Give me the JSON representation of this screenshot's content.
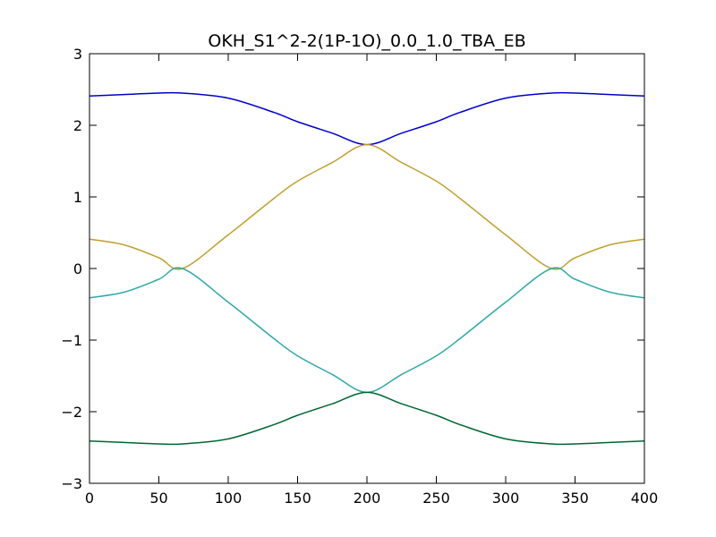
{
  "chart_data": {
    "type": "line",
    "title": "OKH_S1^2-2(1P-1O)_0.0_1.0_TBA_EB",
    "xlabel": "",
    "ylabel": "",
    "xlim": [
      0,
      400
    ],
    "ylim": [
      -3,
      3
    ],
    "xticks": [
      0,
      50,
      100,
      150,
      200,
      250,
      300,
      350,
      400
    ],
    "yticks": [
      -3,
      -2,
      -1,
      0,
      1,
      2,
      3
    ],
    "xtick_labels": [
      "0",
      "50",
      "100",
      "150",
      "200",
      "250",
      "300",
      "350",
      "400"
    ],
    "ytick_labels": [
      "−3",
      "−2",
      "−1",
      "0",
      "1",
      "2",
      "3"
    ],
    "grid": false,
    "legend": "none",
    "series": [
      {
        "color": "#0000cc",
        "x": [
          0,
          25,
          50,
          67,
          100,
          133,
          150,
          175,
          200,
          225,
          250,
          267,
          300,
          333,
          350,
          375,
          400
        ],
        "y": [
          2.41,
          2.43,
          2.45,
          2.45,
          2.38,
          2.18,
          2.05,
          1.89,
          1.73,
          1.89,
          2.05,
          2.18,
          2.38,
          2.45,
          2.45,
          2.43,
          2.41
        ]
      },
      {
        "color": "#c0a030",
        "x": [
          0,
          25,
          50,
          67,
          100,
          133,
          150,
          175,
          200,
          225,
          250,
          267,
          300,
          333,
          350,
          375,
          400
        ],
        "y": [
          0.41,
          0.33,
          0.15,
          0.0,
          0.47,
          0.98,
          1.22,
          1.48,
          1.73,
          1.48,
          1.22,
          0.98,
          0.47,
          0.0,
          0.15,
          0.33,
          0.41
        ]
      },
      {
        "color": "#30a8a8",
        "x": [
          0,
          25,
          50,
          67,
          100,
          133,
          150,
          175,
          200,
          225,
          250,
          267,
          300,
          333,
          350,
          375,
          400
        ],
        "y": [
          -0.41,
          -0.33,
          -0.15,
          0.0,
          -0.47,
          -0.98,
          -1.22,
          -1.48,
          -1.73,
          -1.48,
          -1.22,
          -0.98,
          -0.47,
          0.0,
          -0.15,
          -0.33,
          -0.41
        ]
      },
      {
        "color": "#006633",
        "x": [
          0,
          25,
          50,
          67,
          100,
          133,
          150,
          175,
          200,
          225,
          250,
          267,
          300,
          333,
          350,
          375,
          400
        ],
        "y": [
          -2.41,
          -2.43,
          -2.45,
          -2.45,
          -2.38,
          -2.18,
          -2.05,
          -1.89,
          -1.73,
          -1.89,
          -2.05,
          -2.18,
          -2.38,
          -2.45,
          -2.45,
          -2.43,
          -2.41
        ]
      }
    ]
  }
}
